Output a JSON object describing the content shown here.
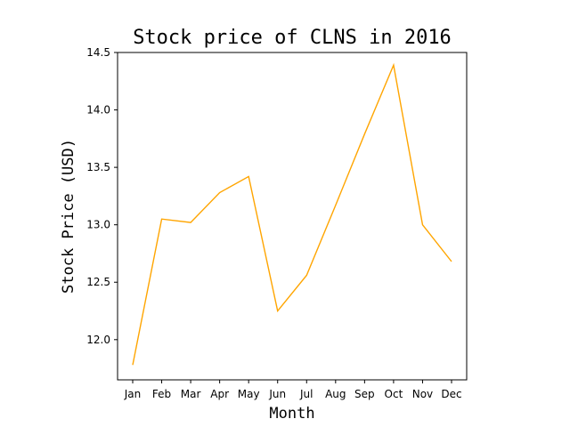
{
  "chart_data": {
    "type": "line",
    "title": "Stock price of CLNS in 2016",
    "xlabel": "Month",
    "ylabel": "Stock Price (USD)",
    "categories": [
      "Jan",
      "Feb",
      "Mar",
      "Apr",
      "May",
      "Jun",
      "Jul",
      "Aug",
      "Sep",
      "Oct",
      "Nov",
      "Dec"
    ],
    "series": [
      {
        "values": [
          11.78,
          13.05,
          13.02,
          13.28,
          13.42,
          12.25,
          12.56,
          13.17,
          13.79,
          14.39,
          13.0,
          12.68
        ],
        "color": "#FFA500"
      }
    ],
    "ylim": [
      11.65,
      14.5
    ],
    "yticks": [
      "12.0",
      "12.5",
      "13.0",
      "13.5",
      "14.0",
      "14.5"
    ],
    "grid": false,
    "legend": "none"
  }
}
